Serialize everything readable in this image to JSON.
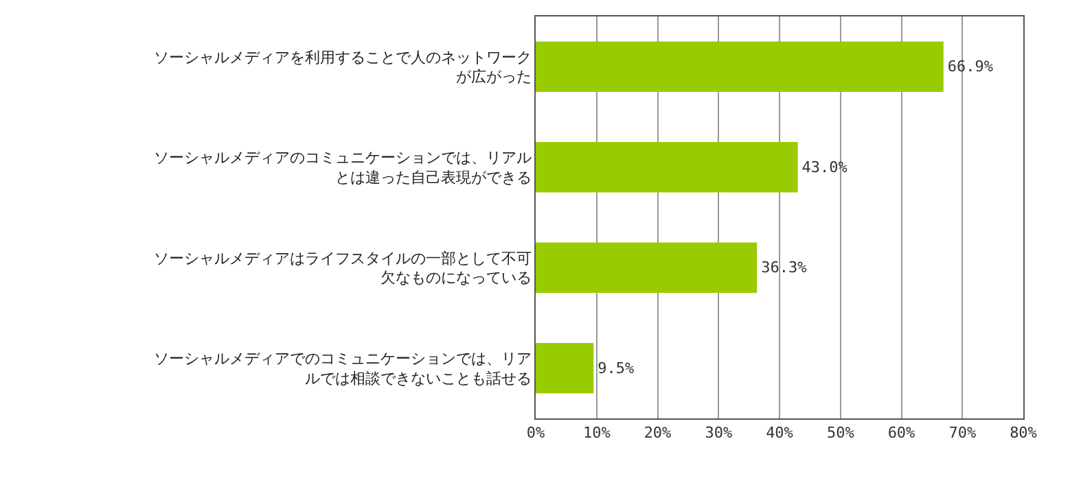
{
  "chart_data": {
    "type": "bar",
    "orientation": "horizontal",
    "categories": [
      "ソーシャルメディアを利用することで人のネットワークが広がった",
      "ソーシャルメディアのコミュニケーションでは、リアルとは違った自己表現ができる",
      "ソーシャルメディアはライフスタイルの一部として不可欠なものになっている",
      "ソーシャルメディアでのコミュニケーションでは、リアルでは相談できないことも話せる"
    ],
    "values": [
      66.9,
      43.0,
      36.3,
      9.5
    ],
    "value_labels": [
      "66.9%",
      "43.0%",
      "36.3%",
      "9.5%"
    ],
    "color": "#99cc00",
    "xlim": [
      0,
      80
    ],
    "xticks": [
      {
        "value": 0,
        "label": "0%"
      },
      {
        "value": 10,
        "label": "10%"
      },
      {
        "value": 20,
        "label": "20%"
      },
      {
        "value": 30,
        "label": "30%"
      },
      {
        "value": 40,
        "label": "40%"
      },
      {
        "value": 50,
        "label": "50%"
      },
      {
        "value": 60,
        "label": "60%"
      },
      {
        "value": 70,
        "label": "70%"
      },
      {
        "value": 80,
        "label": "80%"
      }
    ],
    "grid": "x"
  }
}
